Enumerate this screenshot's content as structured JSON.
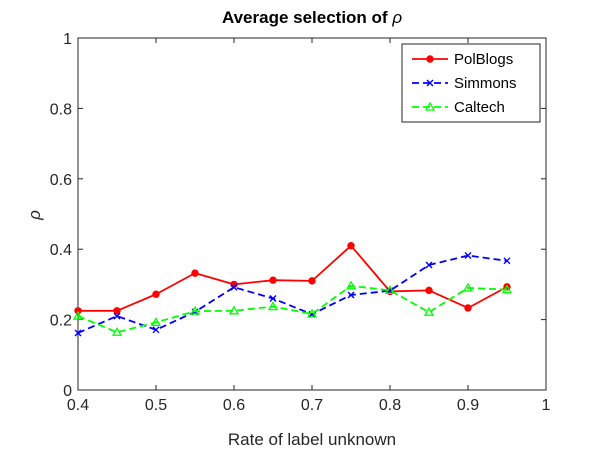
{
  "chart_data": {
    "type": "line",
    "title": "Average selection of ",
    "title_symbol": "ρ",
    "xlabel": "Rate of label unknown",
    "ylabel": "ρ",
    "xlim": [
      0.4,
      1
    ],
    "ylim": [
      0,
      1
    ],
    "xticks": [
      "0.4",
      "0.5",
      "0.6",
      "0.7",
      "0.8",
      "0.9",
      "1"
    ],
    "yticks": [
      "0",
      "0.2",
      "0.4",
      "0.6",
      "0.8",
      "1"
    ],
    "grid": false,
    "legend_position": "top-right",
    "x": [
      0.4,
      0.45,
      0.5,
      0.55,
      0.6,
      0.65,
      0.7,
      0.75,
      0.8,
      0.85,
      0.9,
      0.95
    ],
    "series": [
      {
        "name": "PolBlogs",
        "color": "#ff0000",
        "line_style": "solid",
        "marker": "dot",
        "values": [
          0.225,
          0.225,
          0.272,
          0.332,
          0.3,
          0.312,
          0.31,
          0.41,
          0.28,
          0.283,
          0.233,
          0.293
        ]
      },
      {
        "name": "Simmons",
        "color": "#0000ff",
        "line_style": "dashed",
        "marker": "x",
        "values": [
          0.162,
          0.21,
          0.171,
          0.222,
          0.292,
          0.26,
          0.215,
          0.27,
          0.282,
          0.355,
          0.382,
          0.367
        ]
      },
      {
        "name": "Caltech",
        "color": "#00ff00",
        "line_style": "dashed",
        "marker": "triangle",
        "values": [
          0.21,
          0.164,
          0.192,
          0.224,
          0.225,
          0.237,
          0.216,
          0.296,
          0.283,
          0.221,
          0.29,
          0.285
        ]
      }
    ]
  }
}
